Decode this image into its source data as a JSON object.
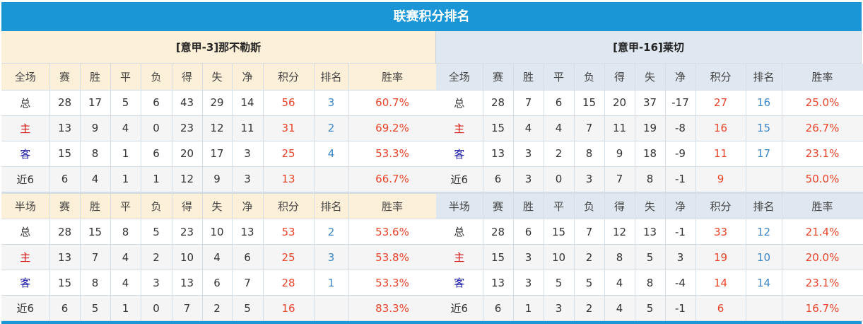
{
  "title": "联赛积分排名",
  "colors": {
    "header": "#1a96d6",
    "points": "#e8442a",
    "rank": "#3b86c6",
    "home": "#d91515",
    "away": "#1a1aa8"
  },
  "panels": [
    {
      "title": "[意甲-3]那不勒斯",
      "sections": [
        {
          "header": [
            "全场",
            "赛",
            "胜",
            "平",
            "负",
            "得",
            "失",
            "净",
            "积分",
            "排名",
            "胜率"
          ],
          "rows": [
            [
              "总",
              "28",
              "17",
              "5",
              "6",
              "43",
              "29",
              "14",
              "56",
              "3",
              "60.7%"
            ],
            [
              "主",
              "13",
              "9",
              "4",
              "0",
              "23",
              "12",
              "11",
              "31",
              "2",
              "69.2%"
            ],
            [
              "客",
              "15",
              "8",
              "1",
              "6",
              "20",
              "17",
              "3",
              "25",
              "4",
              "53.3%"
            ],
            [
              "近6",
              "6",
              "4",
              "1",
              "1",
              "12",
              "9",
              "3",
              "13",
              "",
              "66.7%"
            ]
          ]
        },
        {
          "header": [
            "半场",
            "赛",
            "胜",
            "平",
            "负",
            "得",
            "失",
            "净",
            "积分",
            "排名",
            "胜率"
          ],
          "rows": [
            [
              "总",
              "28",
              "15",
              "8",
              "5",
              "23",
              "10",
              "13",
              "53",
              "2",
              "53.6%"
            ],
            [
              "主",
              "13",
              "7",
              "4",
              "2",
              "10",
              "4",
              "6",
              "25",
              "3",
              "53.8%"
            ],
            [
              "客",
              "15",
              "8",
              "4",
              "3",
              "13",
              "6",
              "7",
              "28",
              "1",
              "53.3%"
            ],
            [
              "近6",
              "6",
              "5",
              "1",
              "0",
              "7",
              "2",
              "5",
              "16",
              "",
              "83.3%"
            ]
          ]
        }
      ]
    },
    {
      "title": "[意甲-16]莱切",
      "sections": [
        {
          "header": [
            "全场",
            "赛",
            "胜",
            "平",
            "负",
            "得",
            "失",
            "净",
            "积分",
            "排名",
            "胜率"
          ],
          "rows": [
            [
              "总",
              "28",
              "7",
              "6",
              "15",
              "20",
              "37",
              "-17",
              "27",
              "16",
              "25.0%"
            ],
            [
              "主",
              "15",
              "4",
              "4",
              "7",
              "11",
              "19",
              "-8",
              "16",
              "15",
              "26.7%"
            ],
            [
              "客",
              "13",
              "3",
              "2",
              "8",
              "9",
              "18",
              "-9",
              "11",
              "17",
              "23.1%"
            ],
            [
              "近6",
              "6",
              "3",
              "0",
              "3",
              "7",
              "8",
              "-1",
              "9",
              "",
              "50.0%"
            ]
          ]
        },
        {
          "header": [
            "半场",
            "赛",
            "胜",
            "平",
            "负",
            "得",
            "失",
            "净",
            "积分",
            "排名",
            "胜率"
          ],
          "rows": [
            [
              "总",
              "28",
              "6",
              "15",
              "7",
              "12",
              "13",
              "-1",
              "33",
              "12",
              "21.4%"
            ],
            [
              "主",
              "15",
              "3",
              "10",
              "2",
              "8",
              "5",
              "3",
              "19",
              "10",
              "20.0%"
            ],
            [
              "客",
              "13",
              "3",
              "5",
              "5",
              "4",
              "8",
              "-4",
              "14",
              "14",
              "23.1%"
            ],
            [
              "近6",
              "6",
              "1",
              "3",
              "2",
              "4",
              "5",
              "-1",
              "6",
              "",
              "16.7%"
            ]
          ]
        }
      ]
    }
  ]
}
